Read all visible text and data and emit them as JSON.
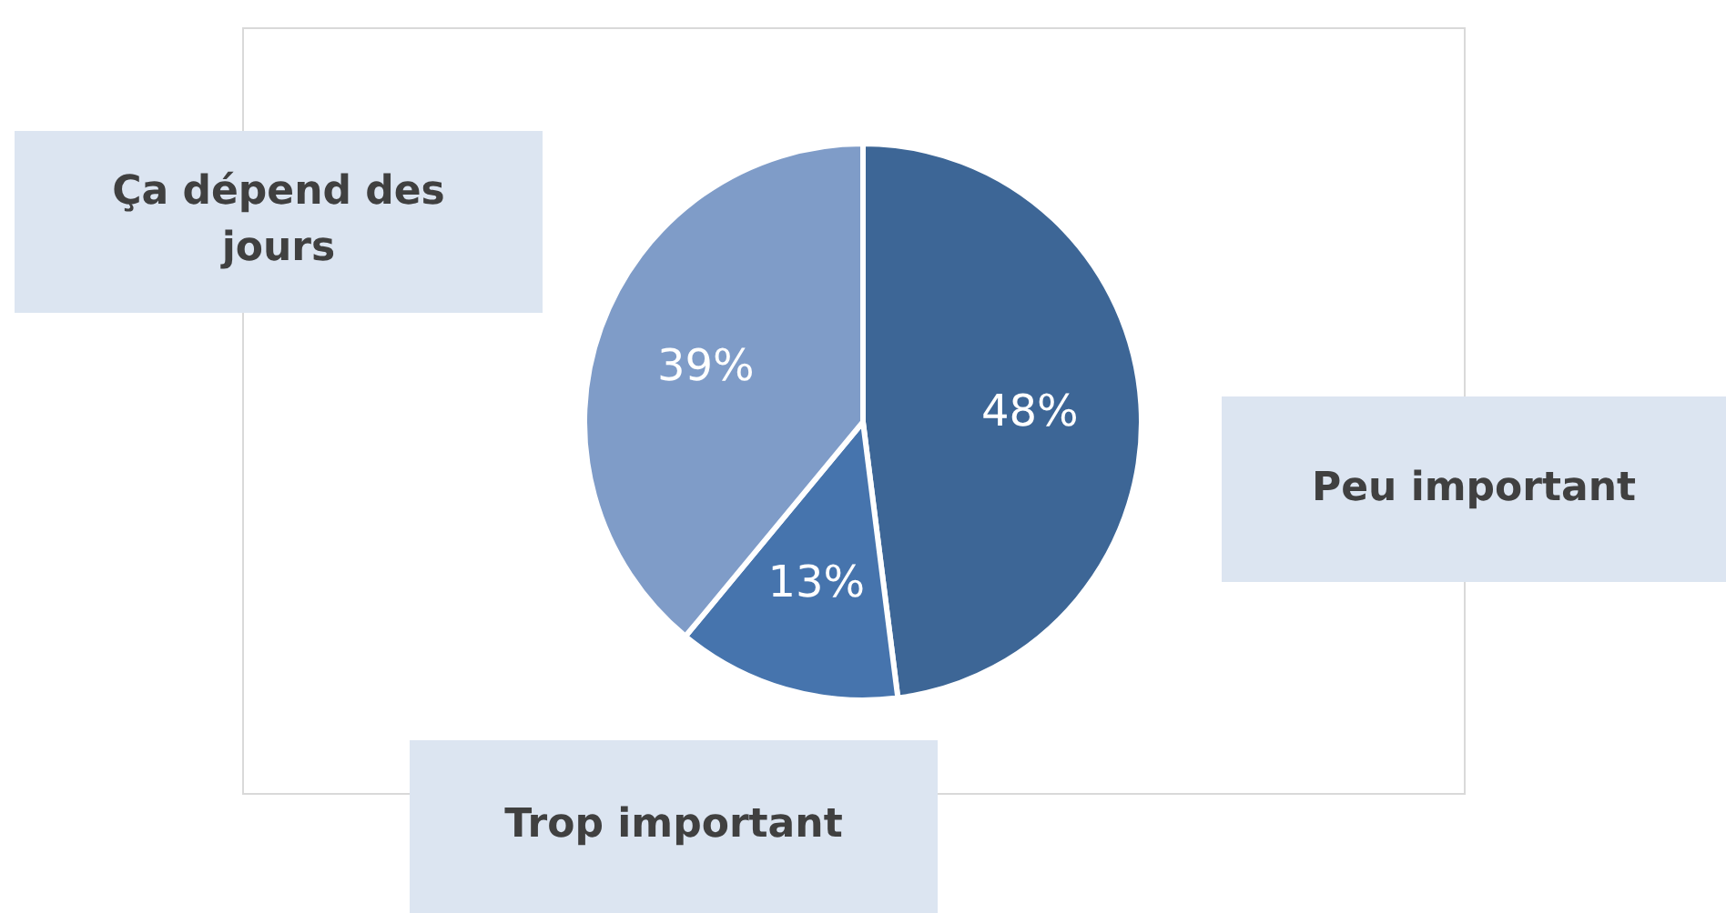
{
  "chart_data": {
    "type": "pie",
    "categories": [
      "Peu important",
      "Trop important",
      "Ça dépend des jours"
    ],
    "values": [
      48,
      13,
      39
    ],
    "colors": [
      "#3d6696",
      "#4674ad",
      "#7f9cc8"
    ],
    "value_labels": [
      "48%",
      "13%",
      "39%"
    ]
  }
}
